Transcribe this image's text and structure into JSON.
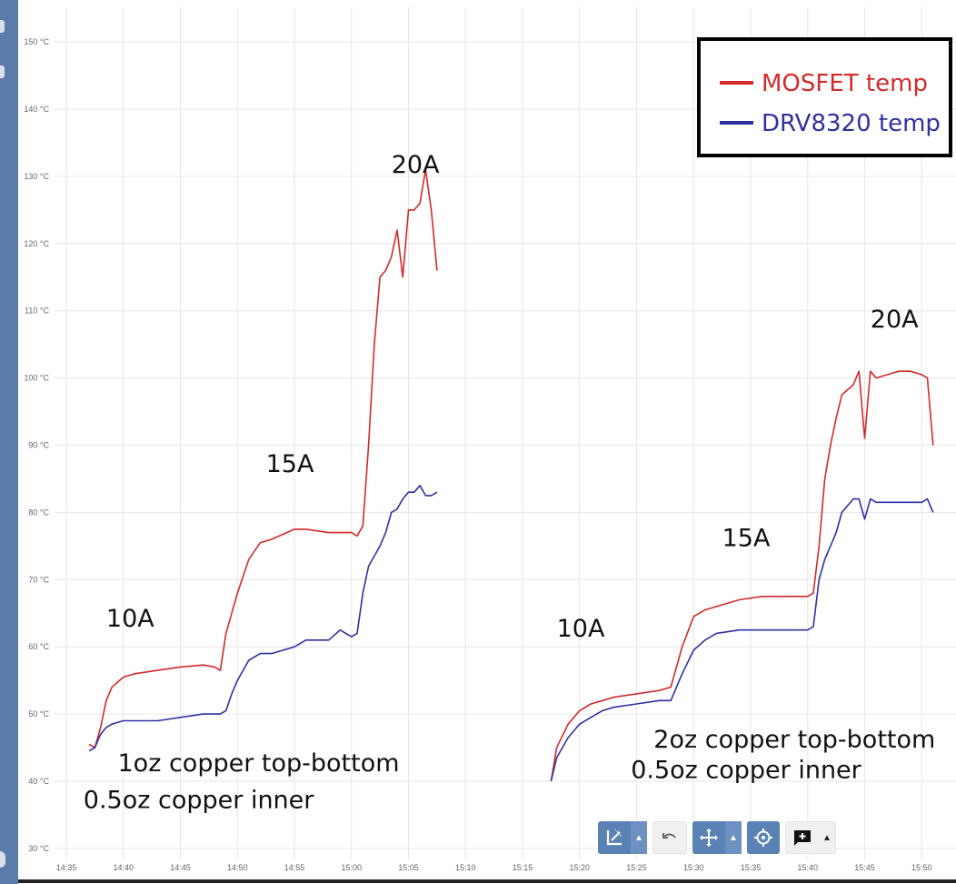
{
  "chart_data": {
    "type": "line",
    "y_unit": "°C",
    "ylim": [
      30,
      155
    ],
    "yticks": [
      "150 °C",
      "140 °C",
      "130 °C",
      "120 °C",
      "110 °C",
      "100 °C",
      "90 °C",
      "80 °C",
      "70 °C",
      "60 °C",
      "50 °C",
      "40 °C",
      "30 °C"
    ],
    "ytick_values": [
      150,
      140,
      130,
      120,
      110,
      100,
      90,
      80,
      70,
      60,
      50,
      40,
      30
    ],
    "xticks": [
      "14:35",
      "14:40",
      "14:45",
      "14:50",
      "14:55",
      "15:00",
      "15:05",
      "15:10",
      "15:15",
      "15:20",
      "15:25",
      "15:30",
      "15:35",
      "15:40",
      "15:45",
      "15:50"
    ],
    "xtick_minutes": [
      875,
      880,
      885,
      890,
      895,
      900,
      905,
      910,
      915,
      920,
      925,
      930,
      935,
      940,
      945,
      950
    ],
    "xlim": [
      "14:33",
      "15:51"
    ],
    "grid": true,
    "legend_position": "top-right",
    "series": [
      {
        "name": "MOSFET temp",
        "color": "#d42a2a",
        "segments": [
          {
            "x": [
              "14:37:00",
              "14:37:30",
              "14:38:00",
              "14:38:30",
              "14:39:00",
              "14:40:00",
              "14:41:00",
              "14:43:00",
              "14:45:00",
              "14:47:00",
              "14:48:00",
              "14:48:30",
              "14:49:00",
              "14:49:30",
              "14:50:00",
              "14:51:00",
              "14:52:00",
              "14:53:00",
              "14:55:00",
              "14:56:00",
              "14:58:00",
              "15:00:00",
              "15:00:30",
              "15:01:00",
              "15:01:30",
              "15:02:00",
              "15:02:30",
              "15:03:00",
              "15:03:30",
              "15:04:00",
              "15:04:30",
              "15:05:00",
              "15:05:30",
              "15:06:00",
              "15:06:30",
              "15:07:00",
              "15:07:30"
            ],
            "y": [
              45.5,
              45,
              48,
              52,
              54,
              55.5,
              56,
              56.5,
              57,
              57.3,
              57,
              56.5,
              62,
              65,
              68,
              73,
              75.5,
              76,
              77.5,
              77.5,
              77,
              77,
              76.5,
              78,
              90,
              105,
              115,
              116,
              118,
              122,
              115,
              125,
              125,
              126,
              131,
              125,
              116
            ]
          },
          {
            "x": [
              "15:17:30",
              "15:18:00",
              "15:19:00",
              "15:20:00",
              "15:21:00",
              "15:22:00",
              "15:23:00",
              "15:25:00",
              "15:27:00",
              "15:28:00",
              "15:29:00",
              "15:30:00",
              "15:31:00",
              "15:32:00",
              "15:34:00",
              "15:36:00",
              "15:38:00",
              "15:40:00",
              "15:40:30",
              "15:41:00",
              "15:41:30",
              "15:42:00",
              "15:42:30",
              "15:43:00",
              "15:44:00",
              "15:44:30",
              "15:45:00",
              "15:45:30",
              "15:46:00",
              "15:47:00",
              "15:48:00",
              "15:49:00",
              "15:50:00",
              "15:50:30",
              "15:51:00"
            ],
            "y": [
              40,
              45,
              48.5,
              50.5,
              51.5,
              52,
              52.5,
              53,
              53.5,
              54,
              60,
              64.5,
              65.5,
              66,
              67,
              67.5,
              67.5,
              67.5,
              68,
              75,
              85,
              90,
              94,
              97.5,
              99,
              101,
              91,
              101,
              100,
              100.5,
              101,
              101,
              100.5,
              100,
              90
            ]
          }
        ]
      },
      {
        "name": "DRV8320 temp",
        "color": "#2f31a3",
        "segments": [
          {
            "x": [
              "14:37:00",
              "14:37:30",
              "14:38:00",
              "14:38:30",
              "14:39:00",
              "14:40:00",
              "14:41:00",
              "14:43:00",
              "14:45:00",
              "14:47:00",
              "14:48:00",
              "14:48:30",
              "14:49:00",
              "14:49:30",
              "14:50:00",
              "14:51:00",
              "14:52:00",
              "14:53:00",
              "14:55:00",
              "14:56:00",
              "14:58:00",
              "14:59:00",
              "15:00:00",
              "15:00:30",
              "15:01:00",
              "15:01:30",
              "15:02:00",
              "15:02:30",
              "15:03:00",
              "15:03:30",
              "15:04:00",
              "15:04:30",
              "15:05:00",
              "15:05:30",
              "15:06:00",
              "15:06:30",
              "15:07:00",
              "15:07:30"
            ],
            "y": [
              44.5,
              45,
              47,
              48,
              48.5,
              49,
              49,
              49,
              49.5,
              50,
              50,
              50,
              50.5,
              53,
              55,
              58,
              59,
              59,
              60,
              61,
              61,
              62.5,
              61.5,
              62,
              68,
              72,
              73.5,
              75,
              77,
              80,
              80.5,
              82,
              83,
              83,
              84,
              82.5,
              82.5,
              83
            ]
          },
          {
            "x": [
              "15:17:30",
              "15:18:00",
              "15:19:00",
              "15:20:00",
              "15:21:00",
              "15:22:00",
              "15:23:00",
              "15:25:00",
              "15:27:00",
              "15:28:00",
              "15:29:00",
              "15:30:00",
              "15:31:00",
              "15:32:00",
              "15:34:00",
              "15:36:00",
              "15:38:00",
              "15:40:00",
              "15:40:30",
              "15:41:00",
              "15:41:30",
              "15:42:00",
              "15:42:30",
              "15:43:00",
              "15:44:00",
              "15:44:30",
              "15:45:00",
              "15:45:30",
              "15:46:00",
              "15:47:00",
              "15:48:00",
              "15:49:00",
              "15:50:00",
              "15:50:30",
              "15:51:00"
            ],
            "y": [
              40,
              43.5,
              46.5,
              48.5,
              49.5,
              50.5,
              51,
              51.5,
              52,
              52,
              56,
              59.5,
              61,
              62,
              62.5,
              62.5,
              62.5,
              62.5,
              63,
              70,
              73,
              75,
              77,
              80,
              82,
              82,
              79,
              82,
              81.5,
              81.5,
              81.5,
              81.5,
              81.5,
              82,
              80
            ]
          }
        ]
      }
    ],
    "annotations": [
      {
        "text": "10A",
        "x": "14:38:30",
        "y": 63
      },
      {
        "text": "15A",
        "x": "14:52:30",
        "y": 86
      },
      {
        "text": "20A",
        "x": "15:03:30",
        "y": 130.5
      },
      {
        "text": "10A",
        "x": "15:18:00",
        "y": 61.5
      },
      {
        "text": "15A",
        "x": "15:32:30",
        "y": 75
      },
      {
        "text": "20A",
        "x": "15:45:30",
        "y": 107.5
      },
      {
        "text": "1oz copper top-bottom",
        "x": "14:39:30",
        "y": 41.5
      },
      {
        "text": "0.5oz copper inner",
        "x": "14:36:30",
        "y": 36
      },
      {
        "text": "2oz copper top-bottom",
        "x": "15:26:30",
        "y": 45
      },
      {
        "text": "0.5oz copper inner",
        "x": "15:24:30",
        "y": 40.5
      }
    ]
  },
  "toolbar": {
    "items": [
      {
        "name": "box-zoom-button",
        "icon": "zoom-select-icon",
        "dropdown": true,
        "style": "blue"
      },
      {
        "name": "undo-button",
        "icon": "undo-icon",
        "dropdown": false,
        "style": "grey"
      },
      {
        "name": "pan-button",
        "icon": "pan-icon",
        "dropdown": true,
        "style": "blue"
      },
      {
        "name": "reset-zoom-button",
        "icon": "target-icon",
        "dropdown": false,
        "style": "blue"
      },
      {
        "name": "annotate-button",
        "icon": "add-comment-icon",
        "dropdown": true,
        "style": "grey"
      }
    ]
  },
  "colors": {
    "sidebar": "#5b7bab",
    "grid": "#e6e6e6",
    "tick_text": "#666666",
    "toolbar_blue": "#5b82b5"
  }
}
